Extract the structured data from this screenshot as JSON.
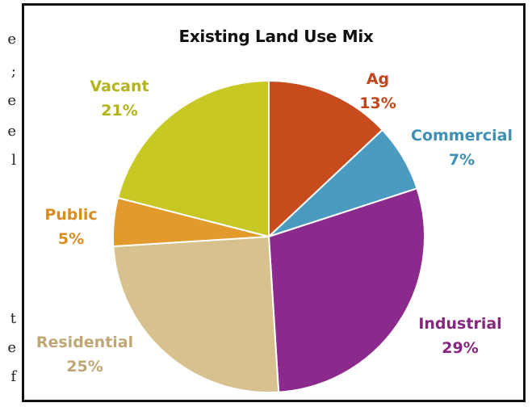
{
  "page_edge_text": [
    "e",
    ";",
    "e",
    "e",
    "l",
    "t",
    "e",
    "f"
  ],
  "chart_data": {
    "type": "pie",
    "title": "Existing Land Use Mix",
    "unit": "%",
    "slices": [
      {
        "label": "Ag",
        "value": 13,
        "display": "13%",
        "color": "#c84b1d",
        "label_color": "#c0451b"
      },
      {
        "label": "Commercial",
        "value": 7,
        "display": "7%",
        "color": "#4a9bbf",
        "label_color": "#3f8fb3"
      },
      {
        "label": "Industrial",
        "value": 29,
        "display": "29%",
        "color": "#8b2a8c",
        "label_color": "#85267f"
      },
      {
        "label": "Residential",
        "value": 25,
        "display": "25%",
        "color": "#d6c18f",
        "label_color": "#bfa774"
      },
      {
        "label": "Public",
        "value": 5,
        "display": "5%",
        "color": "#e39a2c",
        "label_color": "#d98d1f"
      },
      {
        "label": "Vacant",
        "value": 21,
        "display": "21%",
        "color": "#c8c825",
        "label_color": "#b3b31c"
      }
    ],
    "start": "12 o'clock",
    "direction": "clockwise",
    "legend": "none"
  }
}
